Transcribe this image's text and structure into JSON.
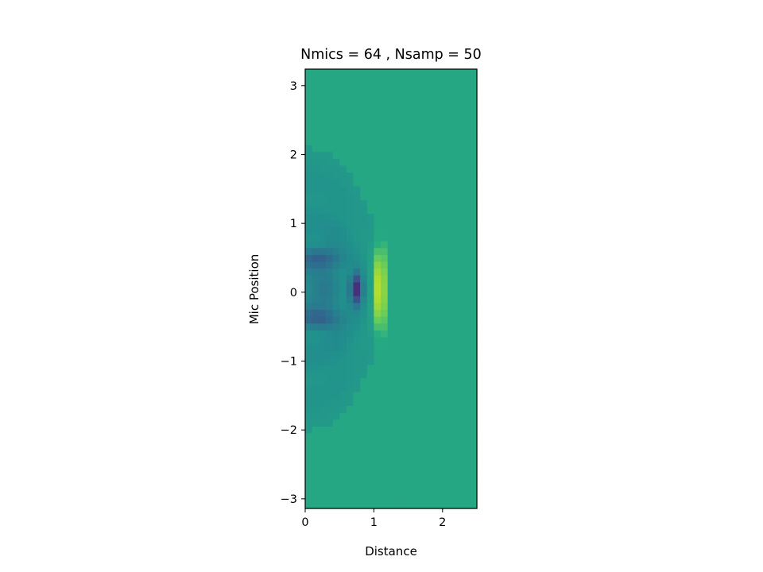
{
  "chart_data": {
    "type": "heatmap",
    "title": "Nmics = 64 , Nsamp = 50",
    "xlabel": "Distance",
    "ylabel": "Mic Position",
    "xlim": [
      0,
      2.5
    ],
    "ylim": [
      -3.14,
      3.24
    ],
    "xticks": [
      0,
      1,
      2
    ],
    "yticks": [
      -3,
      -2,
      -1,
      0,
      1,
      2,
      3
    ],
    "grid": false,
    "colormap": "viridis",
    "nx": 25,
    "ny": 64,
    "cell_width": 0.1,
    "value_range": [
      -1,
      1
    ],
    "background_value": 0.2,
    "features": [
      {
        "kind": "wavefront_ring",
        "center": [
          0,
          0.05
        ],
        "radius_x": 1.12,
        "radius_y": 2.05,
        "strength": -0.22
      },
      {
        "kind": "hot_ridge",
        "center": [
          1.08,
          0.05
        ],
        "half_width_x": 0.1,
        "half_height_y": 0.75,
        "peak": 1.0
      },
      {
        "kind": "dark_streak",
        "center": [
          0.74,
          0.05
        ],
        "half_width_x": 0.1,
        "half_height_y": 0.3,
        "peak": -1.0
      },
      {
        "kind": "dark_lobe",
        "center": [
          0.2,
          0.5
        ],
        "peak": -0.75
      },
      {
        "kind": "dark_lobe",
        "center": [
          0.2,
          -0.38
        ],
        "peak": -0.75
      }
    ]
  }
}
